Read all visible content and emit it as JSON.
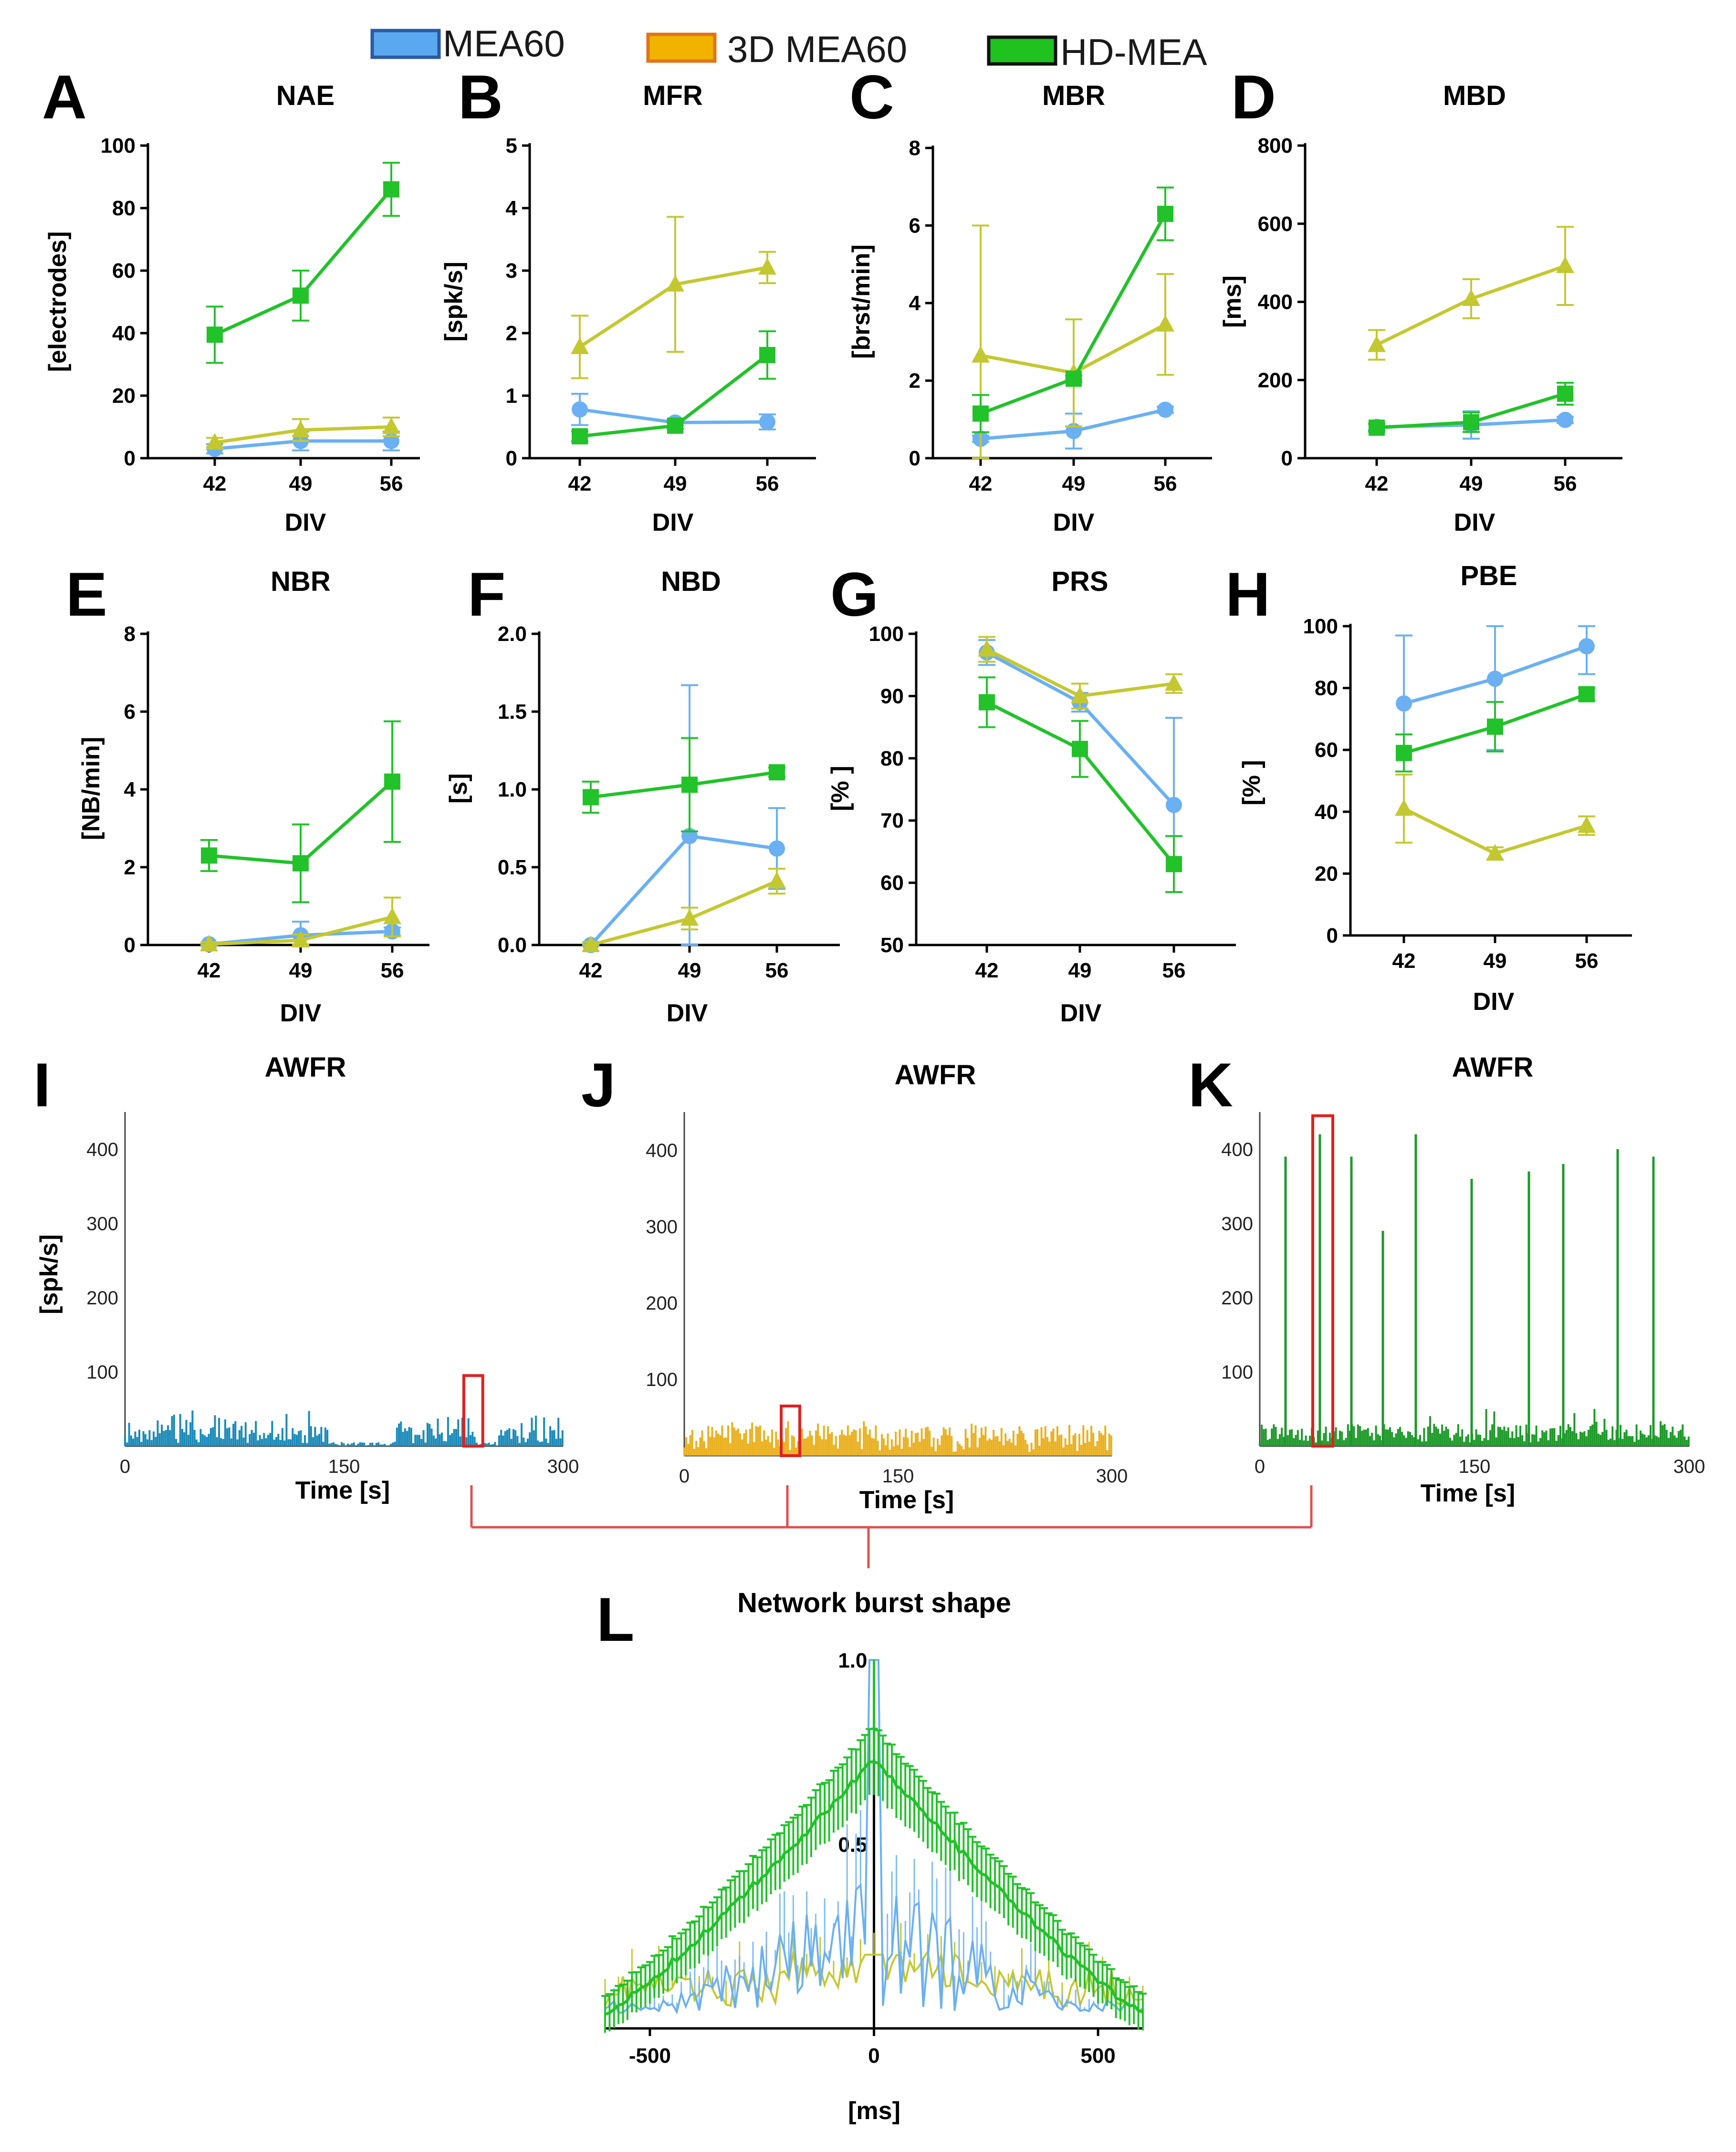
{
  "legend": [
    {
      "label": "MEA60",
      "color": "#5aa8f0",
      "border": "#2a5aa0"
    },
    {
      "label": "3D MEA60",
      "color": "#f0b400",
      "border": "#e0741a"
    },
    {
      "label": "HD-MEA",
      "color": "#1fc21f",
      "border": "#101010"
    }
  ],
  "colors": {
    "mea60": "#6ab0f2",
    "mea3d": "#c4c830",
    "hdmea": "#22c22a",
    "awfr_i": "#1a8ab8",
    "awfr_j": "#eab020",
    "awfr_k": "#1e9a2a",
    "roi": "#e02020"
  },
  "connector": {
    "color": "#e05050"
  },
  "chart_data": [
    {
      "id": "A",
      "type": "line",
      "title": "NAE",
      "xlabel": "DIV",
      "ylabel": "[electrodes]",
      "categories": [
        "42",
        "49",
        "56"
      ],
      "ylim": [
        0,
        100
      ],
      "yticks": [
        0,
        20,
        40,
        60,
        80,
        100
      ],
      "series": [
        {
          "name": "MEA60",
          "values": [
            3,
            5.5,
            5.5
          ],
          "errors": [
            1.5,
            3,
            3
          ]
        },
        {
          "name": "3D MEA60",
          "values": [
            5,
            9,
            10
          ],
          "errors": [
            1.5,
            3.5,
            3
          ]
        },
        {
          "name": "HD-MEA",
          "values": [
            39.5,
            52,
            86
          ],
          "errors": [
            9,
            8,
            8.5
          ]
        }
      ]
    },
    {
      "id": "B",
      "type": "line",
      "title": "MFR",
      "xlabel": "DIV",
      "ylabel": "[spk/s]",
      "categories": [
        "42",
        "49",
        "56"
      ],
      "ylim": [
        0,
        5
      ],
      "yticks": [
        0,
        1,
        2,
        3,
        4,
        5
      ],
      "series": [
        {
          "name": "MEA60",
          "values": [
            0.78,
            0.57,
            0.58
          ],
          "errors": [
            0.25,
            0.05,
            0.12
          ]
        },
        {
          "name": "3D MEA60",
          "values": [
            1.78,
            2.78,
            3.05
          ],
          "errors": [
            0.5,
            1.08,
            0.25
          ]
        },
        {
          "name": "HD-MEA",
          "values": [
            0.35,
            0.52,
            1.65
          ],
          "errors": [
            0.08,
            0.05,
            0.38
          ]
        }
      ]
    },
    {
      "id": "C",
      "type": "line",
      "title": "MBR",
      "xlabel": "DIV",
      "ylabel": "[brst/min]",
      "categories": [
        "42",
        "49",
        "56"
      ],
      "ylim": [
        0,
        8
      ],
      "yticks": [
        0,
        2,
        4,
        6,
        8
      ],
      "series": [
        {
          "name": "MEA60",
          "values": [
            0.5,
            0.7,
            1.25
          ],
          "errors": [
            0.08,
            0.45,
            0.08
          ]
        },
        {
          "name": "3D MEA60",
          "values": [
            2.65,
            2.2,
            3.45
          ],
          "errors": [
            3.35,
            1.38,
            1.3
          ]
        },
        {
          "name": "HD-MEA",
          "values": [
            1.15,
            2.05,
            6.3
          ],
          "errors": [
            0.48,
            0.08,
            0.68
          ]
        }
      ]
    },
    {
      "id": "D",
      "type": "line",
      "title": "MBD",
      "xlabel": "DIV",
      "ylabel": "[ms]",
      "categories": [
        "42",
        "49",
        "56"
      ],
      "ylim": [
        0,
        800
      ],
      "yticks": [
        0,
        200,
        400,
        600,
        800
      ],
      "series": [
        {
          "name": "MEA60",
          "values": [
            80,
            85,
            98
          ],
          "errors": [
            8,
            35,
            8
          ]
        },
        {
          "name": "3D MEA60",
          "values": [
            290,
            408,
            492
          ],
          "errors": [
            38,
            50,
            100
          ]
        },
        {
          "name": "HD-MEA",
          "values": [
            78,
            92,
            165
          ],
          "errors": [
            10,
            25,
            28
          ]
        }
      ]
    },
    {
      "id": "E",
      "type": "line",
      "title": "NBR",
      "xlabel": "DIV",
      "ylabel": "[NB/min]",
      "categories": [
        "42",
        "49",
        "56"
      ],
      "ylim": [
        0,
        8
      ],
      "yticks": [
        0,
        2,
        4,
        6,
        8
      ],
      "series": [
        {
          "name": "MEA60",
          "values": [
            0.02,
            0.25,
            0.35
          ],
          "errors": [
            0.05,
            0.35,
            0.1
          ]
        },
        {
          "name": "3D MEA60",
          "values": [
            0.02,
            0.12,
            0.72
          ],
          "errors": [
            0.05,
            0.15,
            0.5
          ]
        },
        {
          "name": "HD-MEA",
          "values": [
            2.3,
            2.1,
            4.2
          ],
          "errors": [
            0.4,
            1.0,
            1.55
          ]
        }
      ]
    },
    {
      "id": "F",
      "type": "line",
      "title": "NBD",
      "xlabel": "DIV",
      "ylabel": "[s]",
      "categories": [
        "42",
        "49",
        "56"
      ],
      "ylim": [
        0,
        2
      ],
      "yticks": [
        0,
        0.5,
        1,
        1.5,
        2
      ],
      "ytick_labels": [
        "0.0",
        "0.5",
        "1.0",
        "1.5",
        "2.0"
      ],
      "series": [
        {
          "name": "MEA60",
          "values": [
            0.0,
            0.7,
            0.62
          ],
          "errors": [
            0.02,
            0.97,
            0.26
          ]
        },
        {
          "name": "3D MEA60",
          "values": [
            0.0,
            0.17,
            0.41
          ],
          "errors": [
            0.02,
            0.07,
            0.08
          ]
        },
        {
          "name": "HD-MEA",
          "values": [
            0.95,
            1.03,
            1.11
          ],
          "errors": [
            0.1,
            0.3,
            0.03
          ]
        }
      ]
    },
    {
      "id": "G",
      "type": "line",
      "title": "PRS",
      "xlabel": "DIV",
      "ylabel": "[% ]",
      "categories": [
        "42",
        "49",
        "56"
      ],
      "ylim": [
        50,
        100
      ],
      "yticks": [
        50,
        60,
        70,
        80,
        90,
        100
      ],
      "series": [
        {
          "name": "MEA60",
          "values": [
            97,
            89,
            72.5
          ],
          "errors": [
            2,
            1.5,
            14
          ]
        },
        {
          "name": "3D MEA60",
          "values": [
            97.5,
            90,
            92
          ],
          "errors": [
            2,
            2,
            1.5
          ]
        },
        {
          "name": "HD-MEA",
          "values": [
            89,
            81.5,
            63
          ],
          "errors": [
            4,
            4.5,
            4.5
          ]
        }
      ]
    },
    {
      "id": "H",
      "type": "line",
      "title": "PBE",
      "xlabel": "DIV",
      "ylabel": "[% ]",
      "categories": [
        "42",
        "49",
        "56"
      ],
      "ylim": [
        0,
        100
      ],
      "yticks": [
        0,
        20,
        40,
        60,
        80,
        100
      ],
      "series": [
        {
          "name": "MEA60",
          "values": [
            75,
            83,
            93.5
          ],
          "errors": [
            22,
            23,
            9
          ]
        },
        {
          "name": "3D MEA60",
          "values": [
            41,
            26.5,
            35.5
          ],
          "errors": [
            11,
            2,
            3
          ]
        },
        {
          "name": "HD-MEA",
          "values": [
            59,
            67.5,
            78
          ],
          "errors": [
            6,
            8,
            2
          ]
        }
      ]
    },
    {
      "id": "I",
      "type": "bar",
      "title": "AWFR",
      "xlabel": "Time [s]",
      "ylabel": "[spk/s]",
      "xlim": [
        0,
        300
      ],
      "xticks": [
        0,
        150,
        300
      ],
      "ylim": [
        0,
        450
      ],
      "yticks": [
        100,
        200,
        300,
        400
      ],
      "baseline_max": 40,
      "roi_time_s": [
        232,
        245
      ],
      "bar_width_s": 1.4
    },
    {
      "id": "J",
      "type": "bar",
      "title": "AWFR",
      "xlabel": "Time [s]",
      "ylabel": "",
      "xlim": [
        0,
        300
      ],
      "xticks": [
        0,
        150,
        300
      ],
      "ylim": [
        0,
        450
      ],
      "yticks": [
        100,
        200,
        300,
        400
      ],
      "baseline_max": 45,
      "roi_time_s": [
        68,
        81
      ],
      "bar_width_s": 1.4
    },
    {
      "id": "K",
      "type": "bar",
      "title": "AWFR",
      "xlabel": "Time [s]",
      "ylabel": "",
      "xlim": [
        0,
        300
      ],
      "xticks": [
        0,
        150,
        300
      ],
      "ylim": [
        0,
        450
      ],
      "yticks": [
        100,
        200,
        300,
        400
      ],
      "baseline_max": 40,
      "roi_time_s": [
        37,
        51
      ],
      "bar_width_s": 1.4,
      "bursts": [
        {
          "t": 18,
          "v": 390
        },
        {
          "t": 42,
          "v": 420
        },
        {
          "t": 64,
          "v": 390
        },
        {
          "t": 86,
          "v": 290
        },
        {
          "t": 109,
          "v": 420
        },
        {
          "t": 148,
          "v": 360
        },
        {
          "t": 188,
          "v": 370
        },
        {
          "t": 212,
          "v": 380
        },
        {
          "t": 250,
          "v": 400
        },
        {
          "t": 275,
          "v": 390
        }
      ]
    },
    {
      "id": "L",
      "type": "line",
      "title": "Network burst shape",
      "xlabel": "[ms]",
      "ylabel": "",
      "xlim": [
        -600,
        600
      ],
      "xticks": [
        -500,
        0,
        500
      ],
      "ylim": [
        0,
        1.0
      ],
      "ytick_labels": [
        {
          "v": 1.0,
          "label": "1.0"
        },
        {
          "v": 0.5,
          "label": "0.5"
        }
      ],
      "series": [
        {
          "name": "HD-MEA",
          "shape": "peak 0.73 at 0 ms, linear decay to 0.04 at ±600 ms",
          "peak": 0.73
        },
        {
          "name": "MEA60",
          "shape": "noisy peak, max 1.0 at 0 ms, decays to 0.04",
          "peak": 1.0
        },
        {
          "name": "3D MEA60",
          "shape": "low, 0.05–0.20 range",
          "peak": 0.2
        }
      ]
    }
  ]
}
